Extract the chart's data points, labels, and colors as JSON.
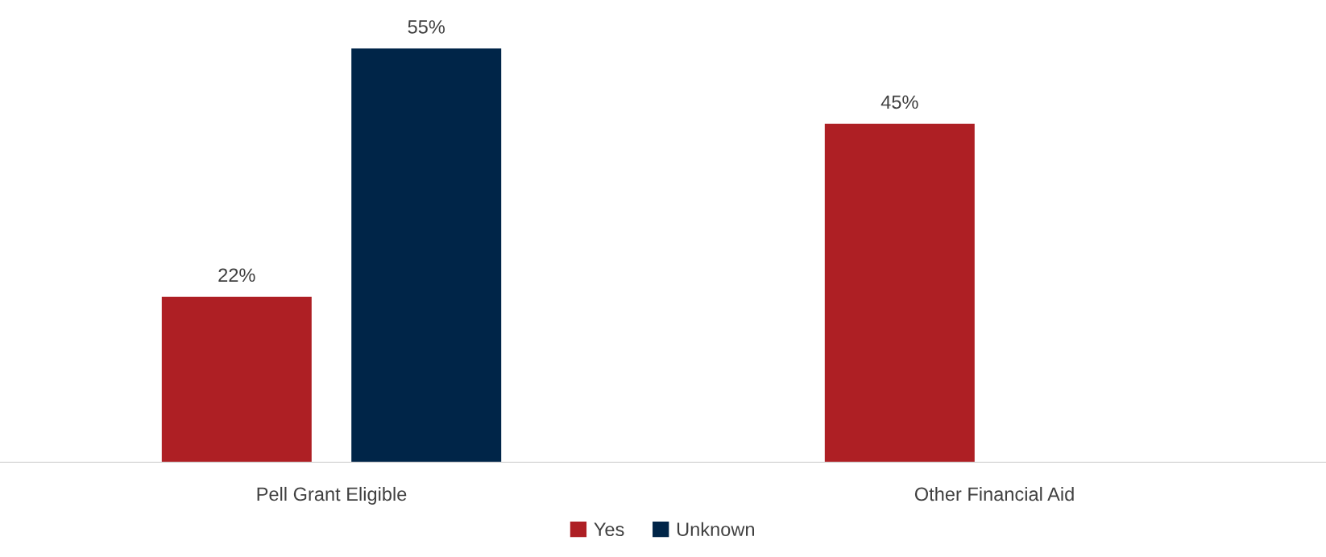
{
  "chart_data": {
    "type": "bar",
    "categories": [
      "Pell Grant Eligible",
      "Other Financial Aid"
    ],
    "series": [
      {
        "name": "Yes",
        "color": "#ae1f24",
        "values": [
          22,
          45
        ],
        "value_labels": [
          "22%",
          "45%"
        ]
      },
      {
        "name": "Unknown",
        "color": "#002548",
        "values": [
          55,
          null
        ],
        "value_labels": [
          "55%",
          null
        ]
      }
    ],
    "legend": "bottom"
  }
}
